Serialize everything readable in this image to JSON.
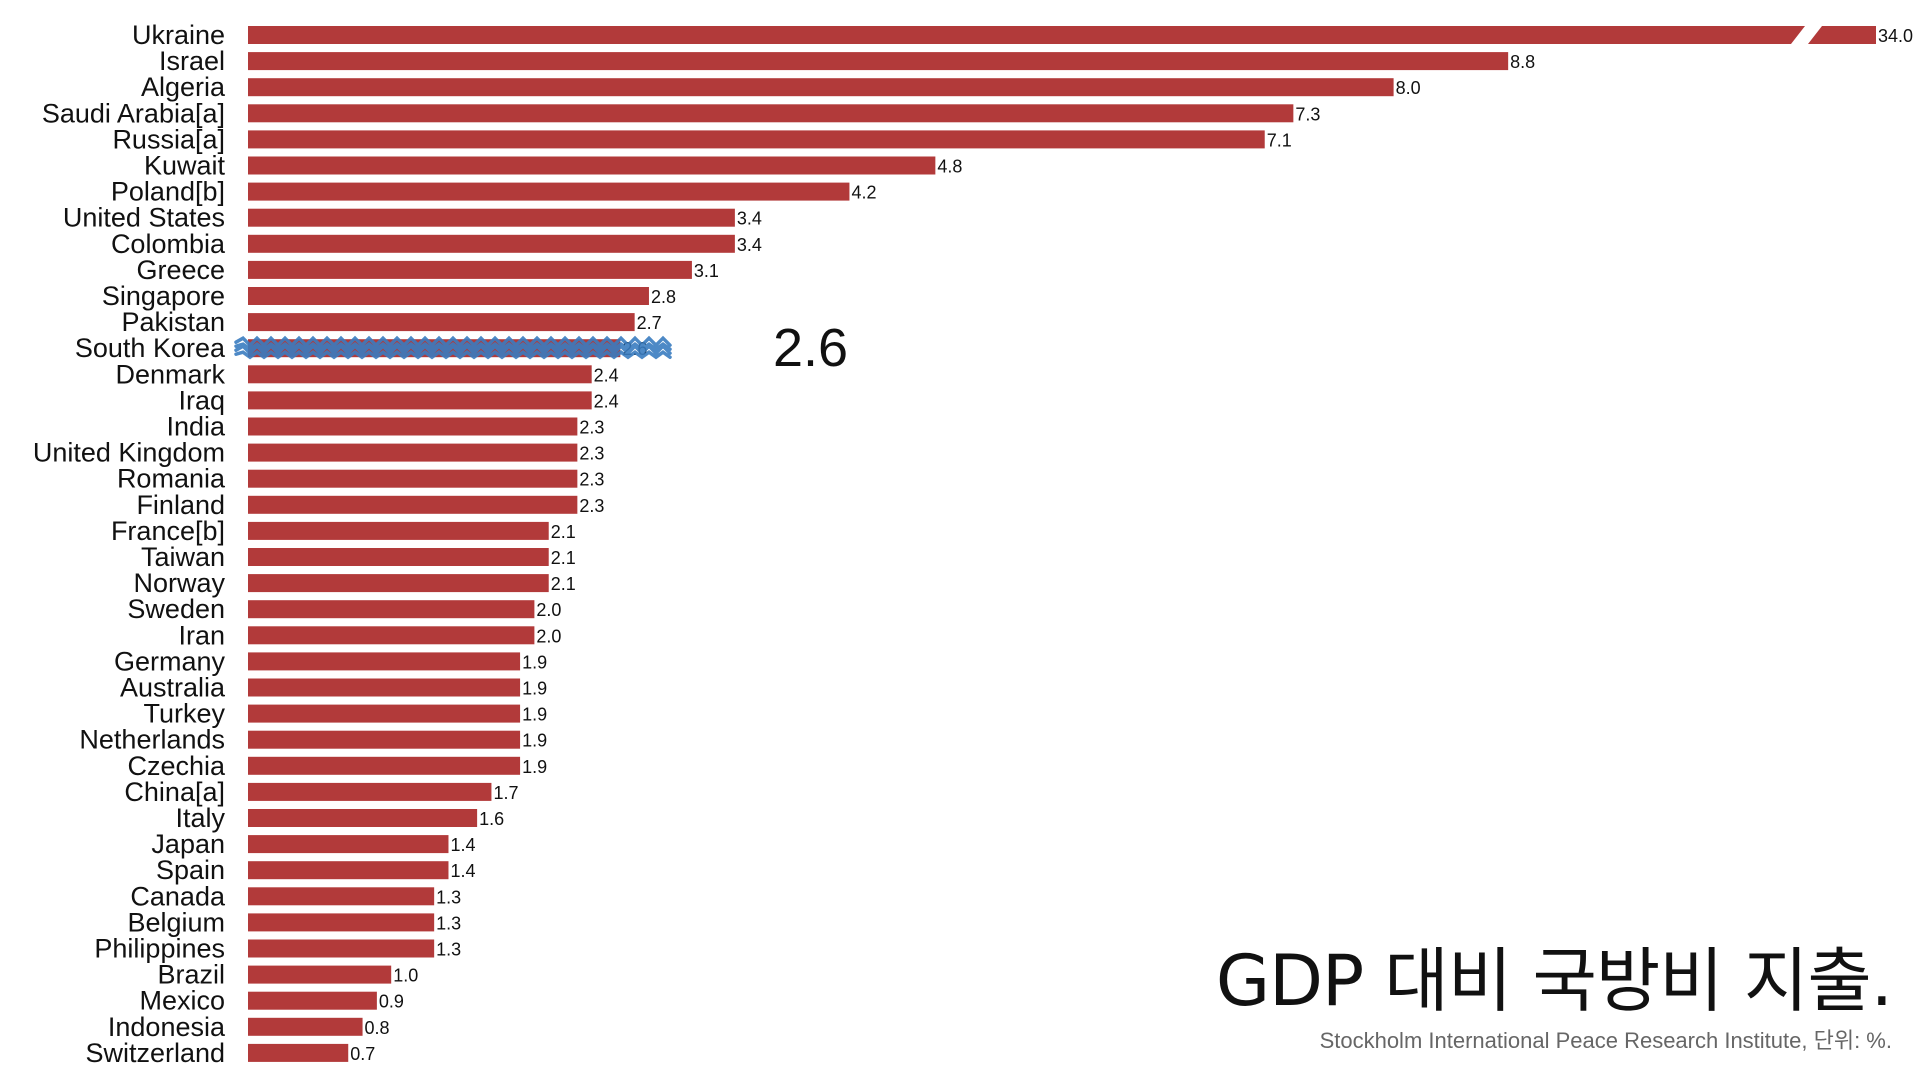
{
  "chart_data": {
    "type": "bar",
    "orientation": "horizontal",
    "categories": [
      "Ukraine",
      "Israel",
      "Algeria",
      "Saudi Arabia[a]",
      "Russia[a]",
      "Kuwait",
      "Poland[b]",
      "United States",
      "Colombia",
      "Greece",
      "Singapore",
      "Pakistan",
      "South Korea",
      "Denmark",
      "Iraq",
      "India",
      "United Kingdom",
      "Romania",
      "Finland",
      "France[b]",
      "Taiwan",
      "Norway",
      "Sweden",
      "Iran",
      "Germany",
      "Australia",
      "Turkey",
      "Netherlands",
      "Czechia",
      "China[a]",
      "Italy",
      "Japan",
      "Spain",
      "Canada",
      "Belgium",
      "Philippines",
      "Brazil",
      "Mexico",
      "Indonesia",
      "Switzerland"
    ],
    "values": [
      34.0,
      8.8,
      8.0,
      7.3,
      7.1,
      4.8,
      4.2,
      3.4,
      3.4,
      3.1,
      2.8,
      2.7,
      2.6,
      2.4,
      2.4,
      2.3,
      2.3,
      2.3,
      2.3,
      2.1,
      2.1,
      2.1,
      2.0,
      2.0,
      1.9,
      1.9,
      1.9,
      1.9,
      1.9,
      1.7,
      1.6,
      1.4,
      1.4,
      1.3,
      1.3,
      1.3,
      1.0,
      0.9,
      0.8,
      0.7
    ],
    "value_labels": [
      "34.0",
      "8.8",
      "8.0",
      "7.3",
      "7.1",
      "4.8",
      "4.2",
      "3.4",
      "3.4",
      "3.1",
      "2.8",
      "2.7",
      "2.6",
      "2.4",
      "2.4",
      "2.3",
      "2.3",
      "2.3",
      "2.3",
      "2.1",
      "2.1",
      "2.1",
      "2.0",
      "2.0",
      "1.9",
      "1.9",
      "1.9",
      "1.9",
      "1.9",
      "1.7",
      "1.6",
      "1.4",
      "1.4",
      "1.3",
      "1.3",
      "1.3",
      "1.0",
      "0.9",
      "0.8",
      "0.7"
    ],
    "axis_break": true,
    "highlight": {
      "category": "South Korea",
      "callout": "2.6",
      "color": "#3a7cc0"
    },
    "bar_color": "#b23a3a",
    "title": "GDP 대비 국방비 지출.",
    "source": "Stockholm International Peace Research Institute, 단위: %.",
    "grid": false,
    "legend": "none"
  }
}
